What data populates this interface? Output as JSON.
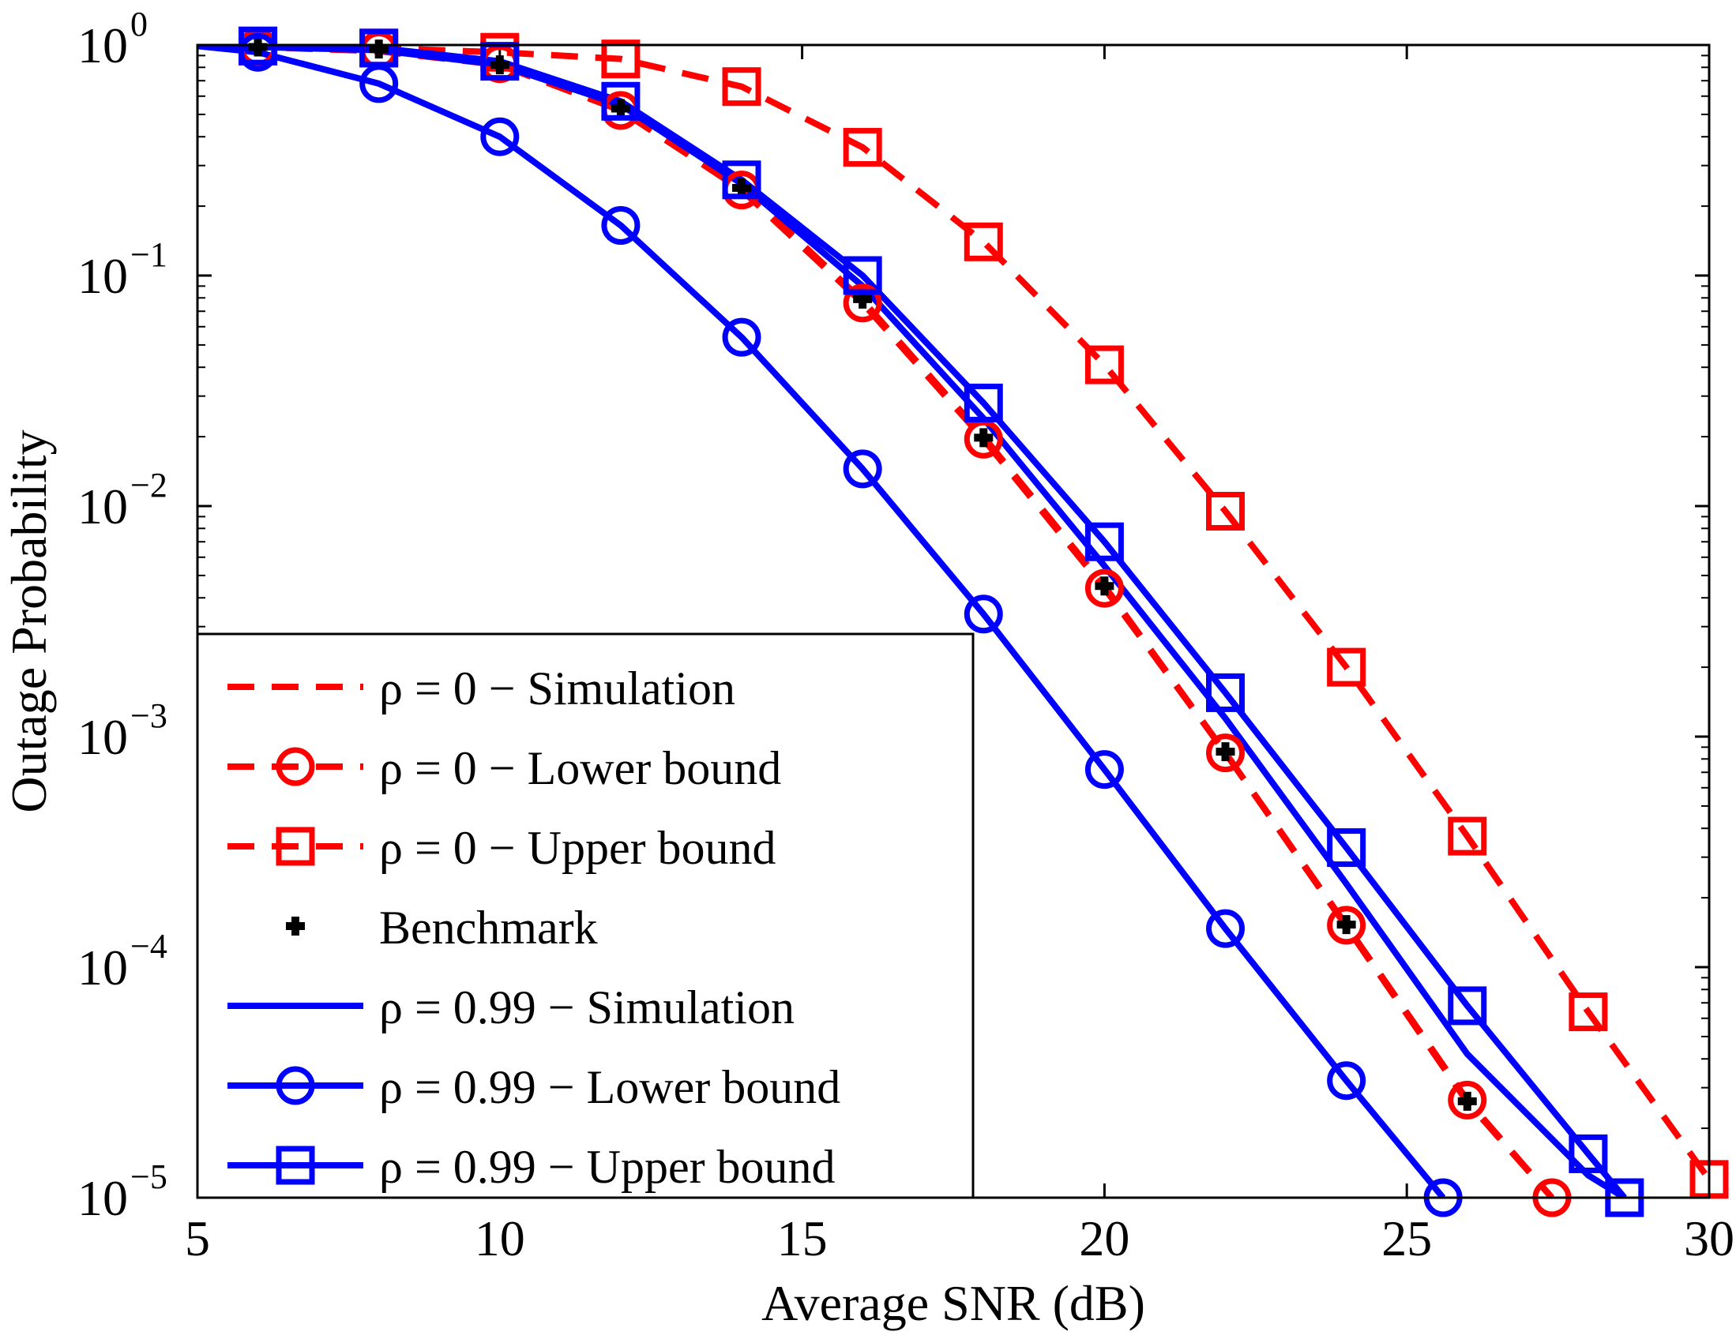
{
  "chart_data": {
    "type": "line",
    "title": "",
    "xlabel": "Average SNR (dB)",
    "ylabel": "Outage Probability",
    "xlim": [
      5,
      30
    ],
    "ylim": [
      1e-05,
      1
    ],
    "yscale": "log",
    "grid": false,
    "legend_position": "bottom-left",
    "x_ticks": [
      5,
      10,
      15,
      20,
      25,
      30
    ],
    "x_tick_labels": [
      "5",
      "10",
      "15",
      "20",
      "25",
      "30"
    ],
    "y_ticks": [
      {
        "value": 1,
        "base": "10",
        "exp": "0"
      },
      {
        "value": 0.1,
        "base": "10",
        "exp": "−1"
      },
      {
        "value": 0.01,
        "base": "10",
        "exp": "−2"
      },
      {
        "value": 0.001,
        "base": "10",
        "exp": "−3"
      },
      {
        "value": 0.0001,
        "base": "10",
        "exp": "−4"
      },
      {
        "value": 1e-05,
        "base": "10",
        "exp": "−5"
      }
    ],
    "series": [
      {
        "name": "ρ = 0 − Simulation",
        "color": "#ff0000",
        "dash": "dashed",
        "marker": "none",
        "x": [
          5,
          6,
          8,
          10,
          12,
          14,
          16,
          18,
          20,
          22,
          24,
          26,
          27.4
        ],
        "y": [
          1,
          0.98,
          0.94,
          0.82,
          0.52,
          0.24,
          0.078,
          0.02,
          0.0045,
          0.00085,
          0.00015,
          2.6e-05,
          1e-05
        ]
      },
      {
        "name": "ρ = 0 − Lower bound",
        "color": "#ff0000",
        "dash": "dashed",
        "marker": "circle",
        "x": [
          5,
          6,
          8,
          10,
          12,
          14,
          16,
          18,
          20,
          22,
          24,
          26,
          27.4
        ],
        "y": [
          1,
          0.98,
          0.95,
          0.83,
          0.52,
          0.235,
          0.076,
          0.0195,
          0.0044,
          0.00085,
          0.000152,
          2.65e-05,
          1e-05
        ]
      },
      {
        "name": "ρ = 0 − Upper bound",
        "color": "#ff0000",
        "dash": "dashed",
        "marker": "square",
        "x": [
          5,
          6,
          8,
          10,
          12,
          14,
          16,
          18,
          20,
          22,
          24,
          26,
          28,
          30
        ],
        "y": [
          1,
          0.99,
          0.97,
          0.93,
          0.87,
          0.66,
          0.36,
          0.14,
          0.041,
          0.0095,
          0.002,
          0.00037,
          6.4e-05,
          1.2e-05
        ]
      },
      {
        "name": "Benchmark",
        "color": "#000000",
        "dash": "none",
        "marker": "plus",
        "x": [
          6,
          8,
          10,
          12,
          14,
          16,
          18,
          20,
          22,
          24,
          26
        ],
        "y": [
          0.98,
          0.96,
          0.82,
          0.53,
          0.24,
          0.079,
          0.0198,
          0.0045,
          0.00086,
          0.000153,
          2.62e-05
        ]
      },
      {
        "name": "ρ = 0.99 − Simulation",
        "color": "#0000ff",
        "dash": "solid",
        "marker": "none",
        "x": [
          5,
          6,
          8,
          10,
          12,
          14,
          16,
          18,
          20,
          22,
          24,
          26,
          28,
          28.6
        ],
        "y": [
          0.99,
          0.98,
          0.95,
          0.82,
          0.55,
          0.25,
          0.09,
          0.024,
          0.0055,
          0.0012,
          0.00023,
          4.2e-05,
          1.25e-05,
          1e-05
        ]
      },
      {
        "name": "ρ = 0.99 − Lower bound",
        "color": "#0000ff",
        "dash": "solid",
        "marker": "circle",
        "x": [
          5,
          6,
          8,
          10,
          12,
          14,
          16,
          18,
          20,
          22,
          24,
          25.6
        ],
        "y": [
          0.99,
          0.93,
          0.68,
          0.4,
          0.165,
          0.054,
          0.0145,
          0.0034,
          0.00072,
          0.000147,
          3.22e-05,
          1e-05
        ]
      },
      {
        "name": "ρ = 0.99 − Upper bound",
        "color": "#0000ff",
        "dash": "solid",
        "marker": "square",
        "x": [
          5,
          6,
          8,
          10,
          12,
          14,
          16,
          18,
          20,
          22,
          24,
          26,
          28,
          28.6
        ],
        "y": [
          1,
          0.99,
          0.97,
          0.85,
          0.57,
          0.26,
          0.1,
          0.028,
          0.007,
          0.00155,
          0.00033,
          6.8e-05,
          1.55e-05,
          1e-05
        ]
      }
    ]
  }
}
